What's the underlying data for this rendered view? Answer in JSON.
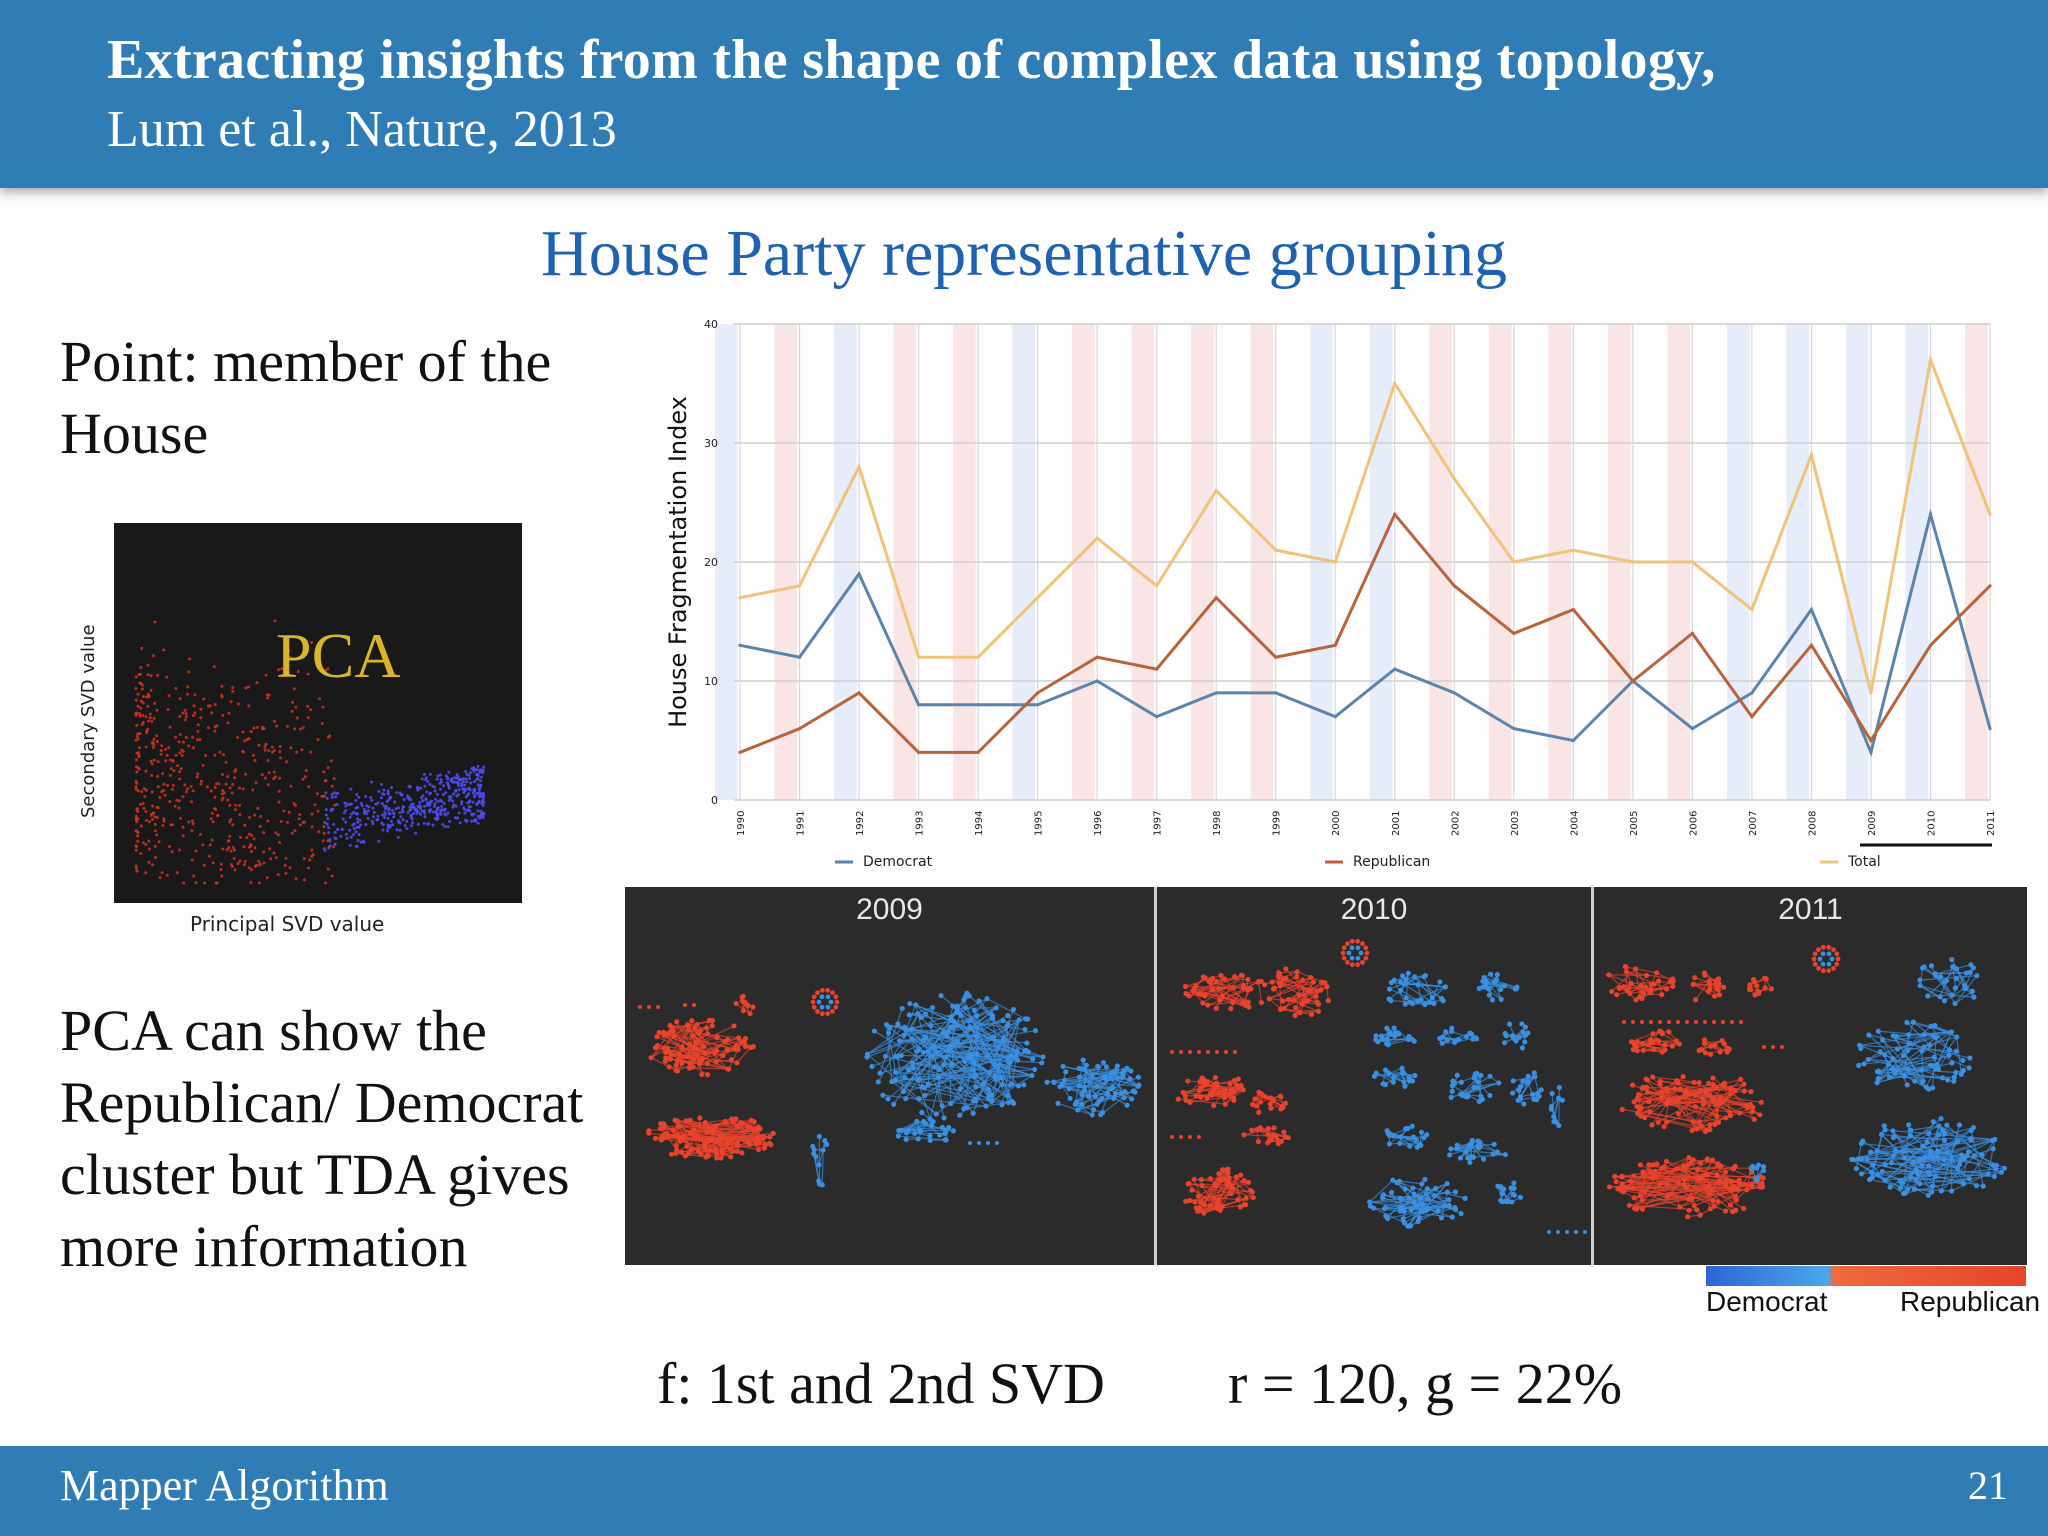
{
  "header": {
    "title_line1": "Extracting insights from the shape of complex data using topology,",
    "title_line2": "Lum et al., Nature, 2013"
  },
  "subtitle": "House Party representative grouping",
  "left": {
    "point_text": "Point: member of the House",
    "pca_note": "PCA can show the Republican/ Democrat cluster but TDA gives more information"
  },
  "pca_plot": {
    "label": "PCA",
    "xlabel": "Principal SVD value",
    "ylabel": "Secondary SVD value",
    "colors": {
      "background": "#191919",
      "republican": "#d8321e",
      "democrat": "#4d4cf0",
      "label": "#d9b52c"
    }
  },
  "chart_data": {
    "type": "line",
    "title": "",
    "xlabel": "",
    "ylabel": "House Fragmentation Index",
    "ylim": [
      0,
      40
    ],
    "yticks": [
      0,
      10,
      20,
      30,
      40
    ],
    "x": [
      1990,
      1991,
      1992,
      1993,
      1994,
      1995,
      1996,
      1997,
      1998,
      1999,
      2000,
      2001,
      2002,
      2003,
      2004,
      2005,
      2006,
      2007,
      2008,
      2009,
      2010,
      2011
    ],
    "series": [
      {
        "name": "Democrat",
        "color": "#5b84ad",
        "values": [
          13,
          12,
          19,
          8,
          8,
          8,
          10,
          7,
          9,
          9,
          7,
          11,
          9,
          6,
          5,
          10,
          6,
          9,
          16,
          4,
          24,
          6
        ]
      },
      {
        "name": "Republican",
        "color": "#b8633a",
        "values": [
          4,
          6,
          9,
          4,
          4,
          9,
          12,
          11,
          17,
          12,
          13,
          24,
          18,
          14,
          16,
          10,
          14,
          7,
          13,
          5,
          13,
          18
        ]
      },
      {
        "name": "Total",
        "color": "#f1c27a",
        "values": [
          17,
          18,
          28,
          12,
          12,
          17,
          22,
          18,
          26,
          21,
          20,
          35,
          27,
          20,
          21,
          20,
          20,
          16,
          29,
          9,
          37,
          24
        ]
      }
    ],
    "legend_position": "bottom",
    "grid": true,
    "background_stripes": [
      "democrat",
      "republican"
    ]
  },
  "mapper": {
    "panels": [
      "2009",
      "2010",
      "2011"
    ],
    "colorbar_labels": {
      "left": "Democrat",
      "right": "Republican"
    }
  },
  "formula": {
    "left": "f: 1st and 2nd SVD",
    "right": "r = 120, g = 22%"
  },
  "footer": {
    "left": "Mapper Algorithm",
    "page_number": "21"
  }
}
